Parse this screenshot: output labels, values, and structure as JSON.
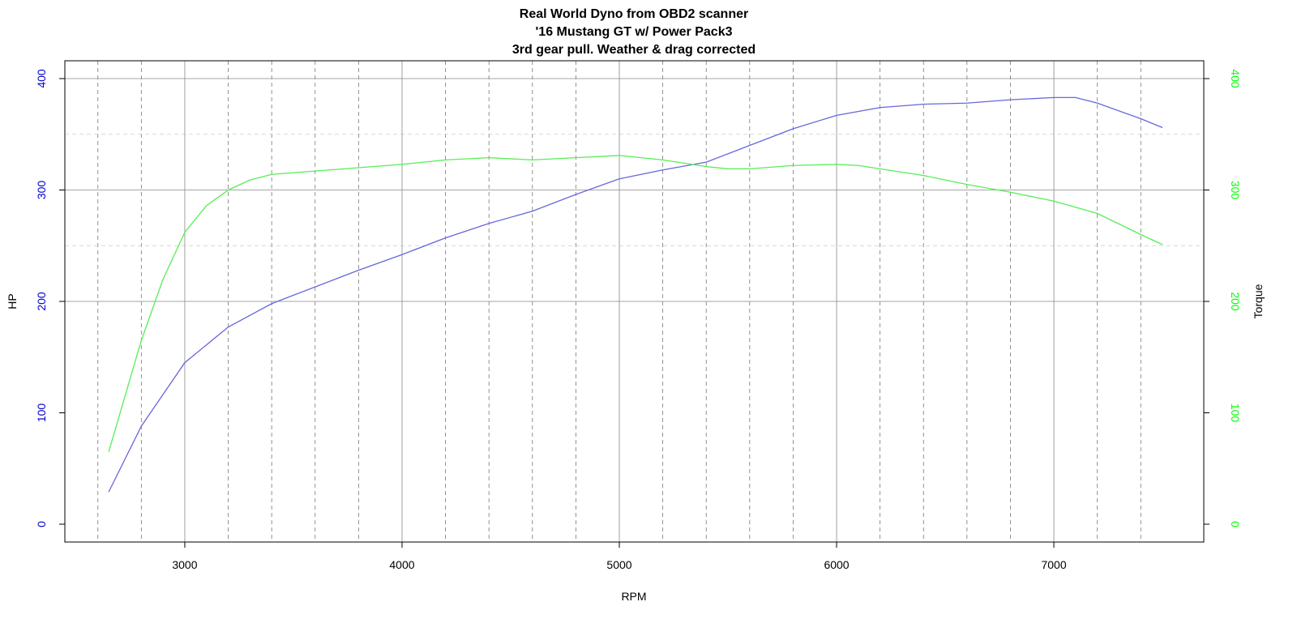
{
  "chart_data": {
    "type": "line",
    "title": [
      "Real World Dyno from OBD2 scanner",
      "'16 Mustang GT w/ Power Pack3",
      "3rd gear pull.  Weather & drag corrected"
    ],
    "xlabel": "RPM",
    "ylabel": "HP",
    "y2label": "Torque",
    "xlim": [
      2448,
      7690
    ],
    "xticks": [
      3000,
      4000,
      5000,
      6000,
      7000
    ],
    "x_minor_grid": [
      2600,
      2800,
      3200,
      3400,
      3600,
      3800,
      4200,
      4400,
      4600,
      4800,
      5200,
      5400,
      5600,
      5800,
      6200,
      6400,
      6600,
      6800,
      7200,
      7400
    ],
    "ylim": [
      -16,
      416
    ],
    "yticks": [
      0,
      100,
      200,
      300,
      400
    ],
    "y_major_grid": [
      200,
      300,
      400
    ],
    "y_minor_grid": [
      250,
      350
    ],
    "y2lim": [
      -16,
      416
    ],
    "y2ticks": [
      0,
      100,
      200,
      300,
      400
    ],
    "y_tick_color": "#0000cc",
    "y2_tick_color": "#00ff00",
    "series": [
      {
        "color": "#6666dd",
        "axis": "y",
        "x": [
          2650,
          2800,
          3000,
          3200,
          3400,
          3600,
          3800,
          4000,
          4200,
          4400,
          4600,
          4800,
          5000,
          5200,
          5400,
          5600,
          5800,
          6000,
          6200,
          6400,
          6600,
          6800,
          7000,
          7100,
          7200,
          7400,
          7500
        ],
        "values": [
          29,
          88,
          145,
          177,
          198,
          213,
          228,
          242,
          257,
          270,
          281,
          296,
          310,
          318,
          325,
          340,
          355,
          367,
          374,
          377,
          378,
          381,
          383,
          383,
          378,
          364,
          356
        ]
      },
      {
        "color": "#55ee55",
        "axis": "y2",
        "x": [
          2650,
          2800,
          2900,
          3000,
          3100,
          3200,
          3300,
          3400,
          3600,
          3800,
          4000,
          4200,
          4400,
          4600,
          4800,
          5000,
          5200,
          5400,
          5500,
          5600,
          5800,
          6000,
          6100,
          6200,
          6400,
          6600,
          6800,
          7000,
          7200,
          7400,
          7500
        ],
        "values": [
          65,
          165,
          220,
          262,
          286,
          300,
          309,
          314,
          317,
          320,
          323,
          327,
          329,
          327,
          329,
          331,
          327,
          321,
          319,
          319,
          322,
          323,
          322,
          319,
          313,
          305,
          298,
          290,
          279,
          260,
          251
        ]
      }
    ]
  }
}
